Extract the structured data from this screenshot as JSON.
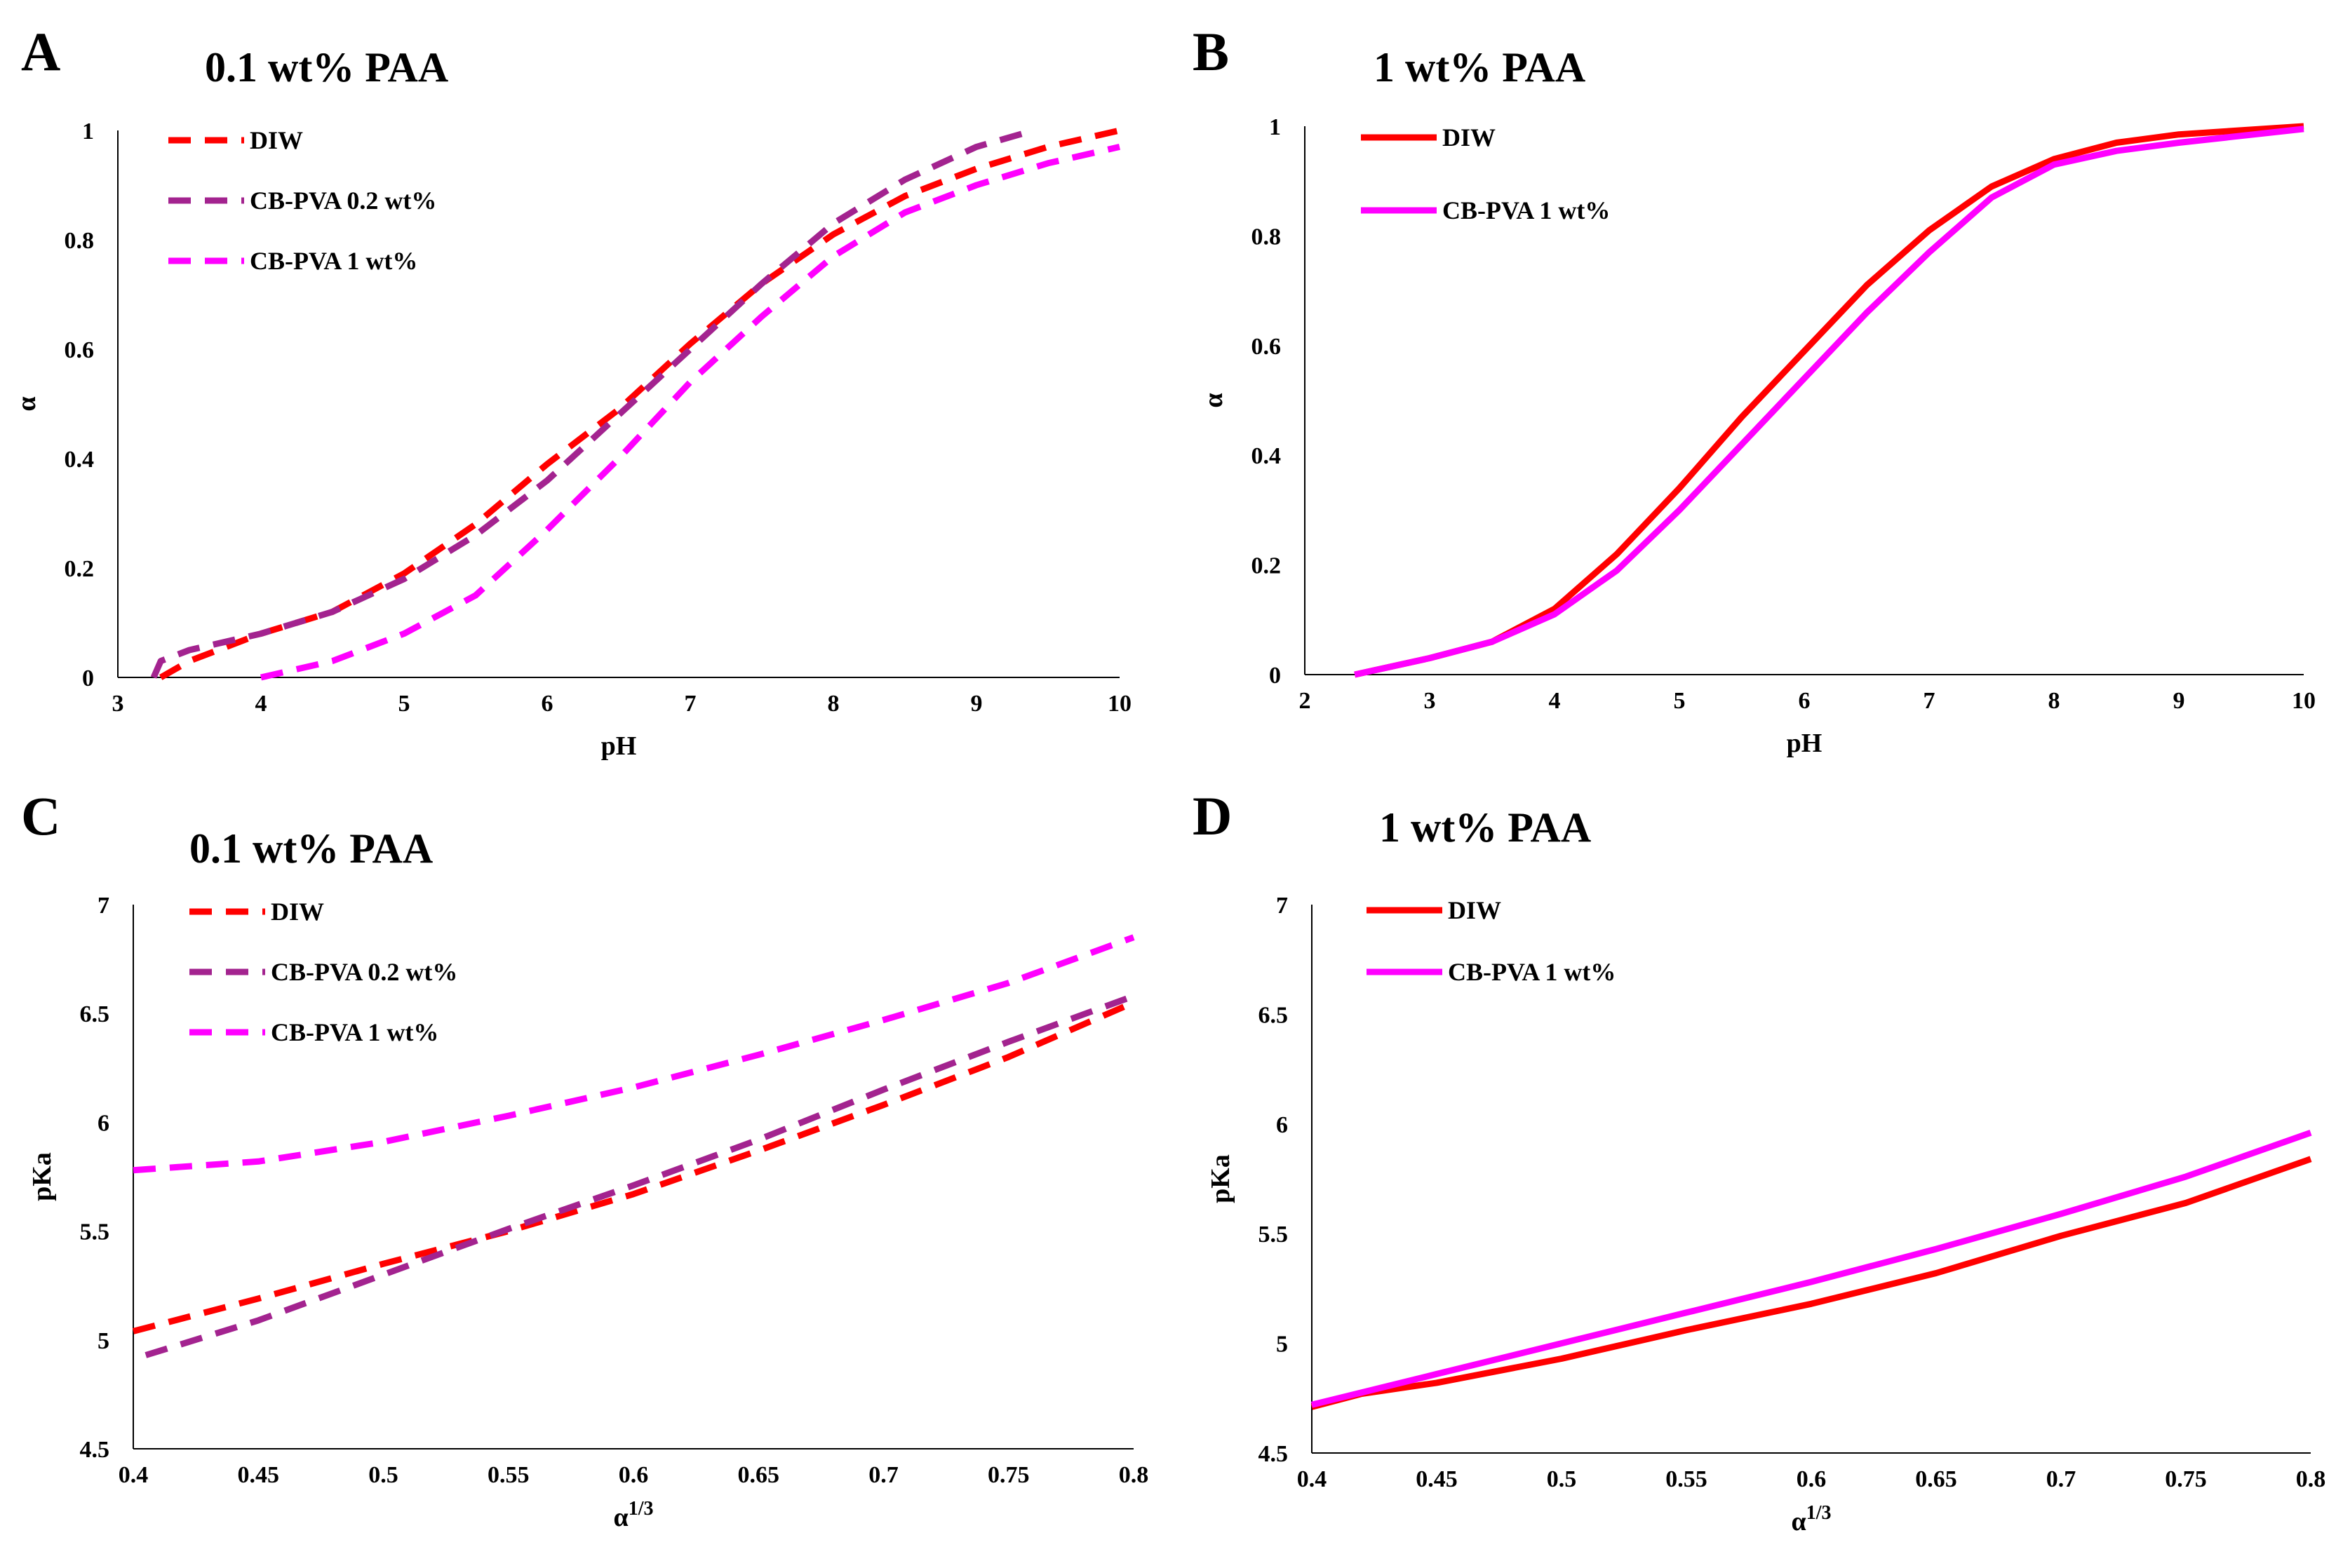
{
  "colors": {
    "DIW": "#ff0000",
    "CB-PVA 0.2 wt%": "#a3238f",
    "CB-PVA 1 wt%": "#ff00ff"
  },
  "chart_data": [
    {
      "id": "A",
      "panel_label": "A",
      "title": "0.1 wt% PAA",
      "type": "line",
      "xlabel": "pH",
      "ylabel": "α",
      "xlim": [
        3,
        10
      ],
      "ylim": [
        0,
        1
      ],
      "xticks": [
        3,
        4,
        5,
        6,
        7,
        8,
        9,
        10
      ],
      "yticks": [
        0,
        0.2,
        0.4,
        0.6,
        0.8,
        1
      ],
      "series": [
        {
          "name": "DIW",
          "style": "dashed",
          "color": "#ff0000",
          "x": [
            3.3,
            3.5,
            4.0,
            4.5,
            5.0,
            5.5,
            6.0,
            6.5,
            7.0,
            7.5,
            8.0,
            8.5,
            9.0,
            9.5,
            10.0
          ],
          "y": [
            0,
            0.03,
            0.08,
            0.12,
            0.19,
            0.28,
            0.39,
            0.49,
            0.61,
            0.72,
            0.81,
            0.88,
            0.93,
            0.97,
            1.0
          ]
        },
        {
          "name": "CB-PVA 0.2 wt%",
          "style": "dashed",
          "color": "#a3238f",
          "x": [
            3.25,
            3.3,
            3.5,
            4.0,
            4.5,
            5.0,
            5.5,
            6.0,
            6.5,
            7.0,
            7.5,
            8.0,
            8.5,
            9.0,
            9.4
          ],
          "y": [
            0,
            0.03,
            0.05,
            0.08,
            0.12,
            0.18,
            0.26,
            0.36,
            0.48,
            0.6,
            0.72,
            0.83,
            0.91,
            0.97,
            1.0
          ]
        },
        {
          "name": "CB-PVA 1 wt%",
          "style": "dashed",
          "color": "#ff00ff",
          "x": [
            4.0,
            4.5,
            5.0,
            5.5,
            6.0,
            6.5,
            7.0,
            7.5,
            8.0,
            8.5,
            9.0,
            9.5,
            10.0
          ],
          "y": [
            0,
            0.03,
            0.08,
            0.15,
            0.27,
            0.4,
            0.54,
            0.66,
            0.77,
            0.85,
            0.9,
            0.94,
            0.97
          ]
        }
      ]
    },
    {
      "id": "B",
      "panel_label": "B",
      "title": "1 wt% PAA",
      "type": "line",
      "xlabel": "pH",
      "ylabel": "α",
      "xlim": [
        2,
        10
      ],
      "ylim": [
        0,
        1
      ],
      "xticks": [
        2,
        3,
        4,
        5,
        6,
        7,
        8,
        9,
        10
      ],
      "yticks": [
        0,
        0.2,
        0.4,
        0.6,
        0.8,
        1
      ],
      "series": [
        {
          "name": "DIW",
          "style": "solid",
          "color": "#ff0000",
          "x": [
            2.4,
            3.0,
            3.5,
            4.0,
            4.5,
            5.0,
            5.5,
            6.0,
            6.5,
            7.0,
            7.5,
            8.0,
            8.5,
            9.0,
            10.0
          ],
          "y": [
            0,
            0.03,
            0.06,
            0.12,
            0.22,
            0.34,
            0.47,
            0.59,
            0.71,
            0.81,
            0.89,
            0.94,
            0.97,
            0.985,
            1.0
          ]
        },
        {
          "name": "CB-PVA 1 wt%",
          "style": "solid",
          "color": "#ff00ff",
          "x": [
            2.4,
            3.0,
            3.5,
            4.0,
            4.5,
            5.0,
            5.5,
            6.0,
            6.5,
            7.0,
            7.5,
            8.0,
            8.5,
            9.0,
            10.0
          ],
          "y": [
            0,
            0.03,
            0.06,
            0.11,
            0.19,
            0.3,
            0.42,
            0.54,
            0.66,
            0.77,
            0.87,
            0.93,
            0.955,
            0.97,
            0.995
          ]
        }
      ]
    },
    {
      "id": "C",
      "panel_label": "C",
      "title": "0.1 wt% PAA",
      "type": "line",
      "xlabel": "α",
      "xlabel_sup": "1/3",
      "ylabel": "pKa",
      "xlim": [
        0.4,
        0.8
      ],
      "ylim": [
        4.5,
        7
      ],
      "xticks": [
        0.4,
        0.45,
        0.5,
        0.55,
        0.6,
        0.65,
        0.7,
        0.75,
        0.8
      ],
      "yticks": [
        4.5,
        5,
        5.5,
        6,
        6.5,
        7
      ],
      "series": [
        {
          "name": "DIW",
          "style": "dashed",
          "color": "#ff0000",
          "x": [
            0.4,
            0.45,
            0.5,
            0.55,
            0.6,
            0.65,
            0.7,
            0.75,
            0.8
          ],
          "y": [
            5.04,
            5.19,
            5.35,
            5.5,
            5.67,
            5.87,
            6.08,
            6.3,
            6.55
          ]
        },
        {
          "name": "CB-PVA 0.2 wt%",
          "style": "dashed",
          "color": "#a3238f",
          "x": [
            0.405,
            0.45,
            0.5,
            0.55,
            0.6,
            0.65,
            0.7,
            0.75,
            0.8
          ],
          "y": [
            4.93,
            5.09,
            5.3,
            5.51,
            5.71,
            5.92,
            6.15,
            6.37,
            6.58
          ]
        },
        {
          "name": "CB-PVA 1 wt%",
          "style": "dashed",
          "color": "#ff00ff",
          "x": [
            0.4,
            0.45,
            0.5,
            0.55,
            0.6,
            0.65,
            0.7,
            0.75,
            0.8
          ],
          "y": [
            5.78,
            5.82,
            5.91,
            6.03,
            6.16,
            6.31,
            6.47,
            6.64,
            6.85
          ]
        }
      ]
    },
    {
      "id": "D",
      "panel_label": "D",
      "title": "1 wt% PAA",
      "type": "line",
      "xlabel": "α",
      "xlabel_sup": "1/3",
      "ylabel": "pKa",
      "xlim": [
        0.4,
        0.8
      ],
      "ylim": [
        4.5,
        7
      ],
      "xticks": [
        0.4,
        0.45,
        0.5,
        0.55,
        0.6,
        0.65,
        0.7,
        0.75,
        0.8
      ],
      "yticks": [
        4.5,
        5,
        5.5,
        6,
        6.5,
        7
      ],
      "series": [
        {
          "name": "DIW",
          "style": "solid",
          "color": "#ff0000",
          "x": [
            0.4,
            0.42,
            0.45,
            0.5,
            0.55,
            0.6,
            0.65,
            0.7,
            0.75,
            0.8
          ],
          "y": [
            4.71,
            4.77,
            4.82,
            4.93,
            5.06,
            5.18,
            5.32,
            5.49,
            5.64,
            5.84
          ]
        },
        {
          "name": "CB-PVA 1 wt%",
          "style": "solid",
          "color": "#ff00ff",
          "x": [
            0.4,
            0.45,
            0.5,
            0.55,
            0.6,
            0.65,
            0.7,
            0.75,
            0.8
          ],
          "y": [
            4.72,
            4.86,
            5.0,
            5.14,
            5.28,
            5.43,
            5.59,
            5.76,
            5.96
          ]
        }
      ]
    }
  ]
}
